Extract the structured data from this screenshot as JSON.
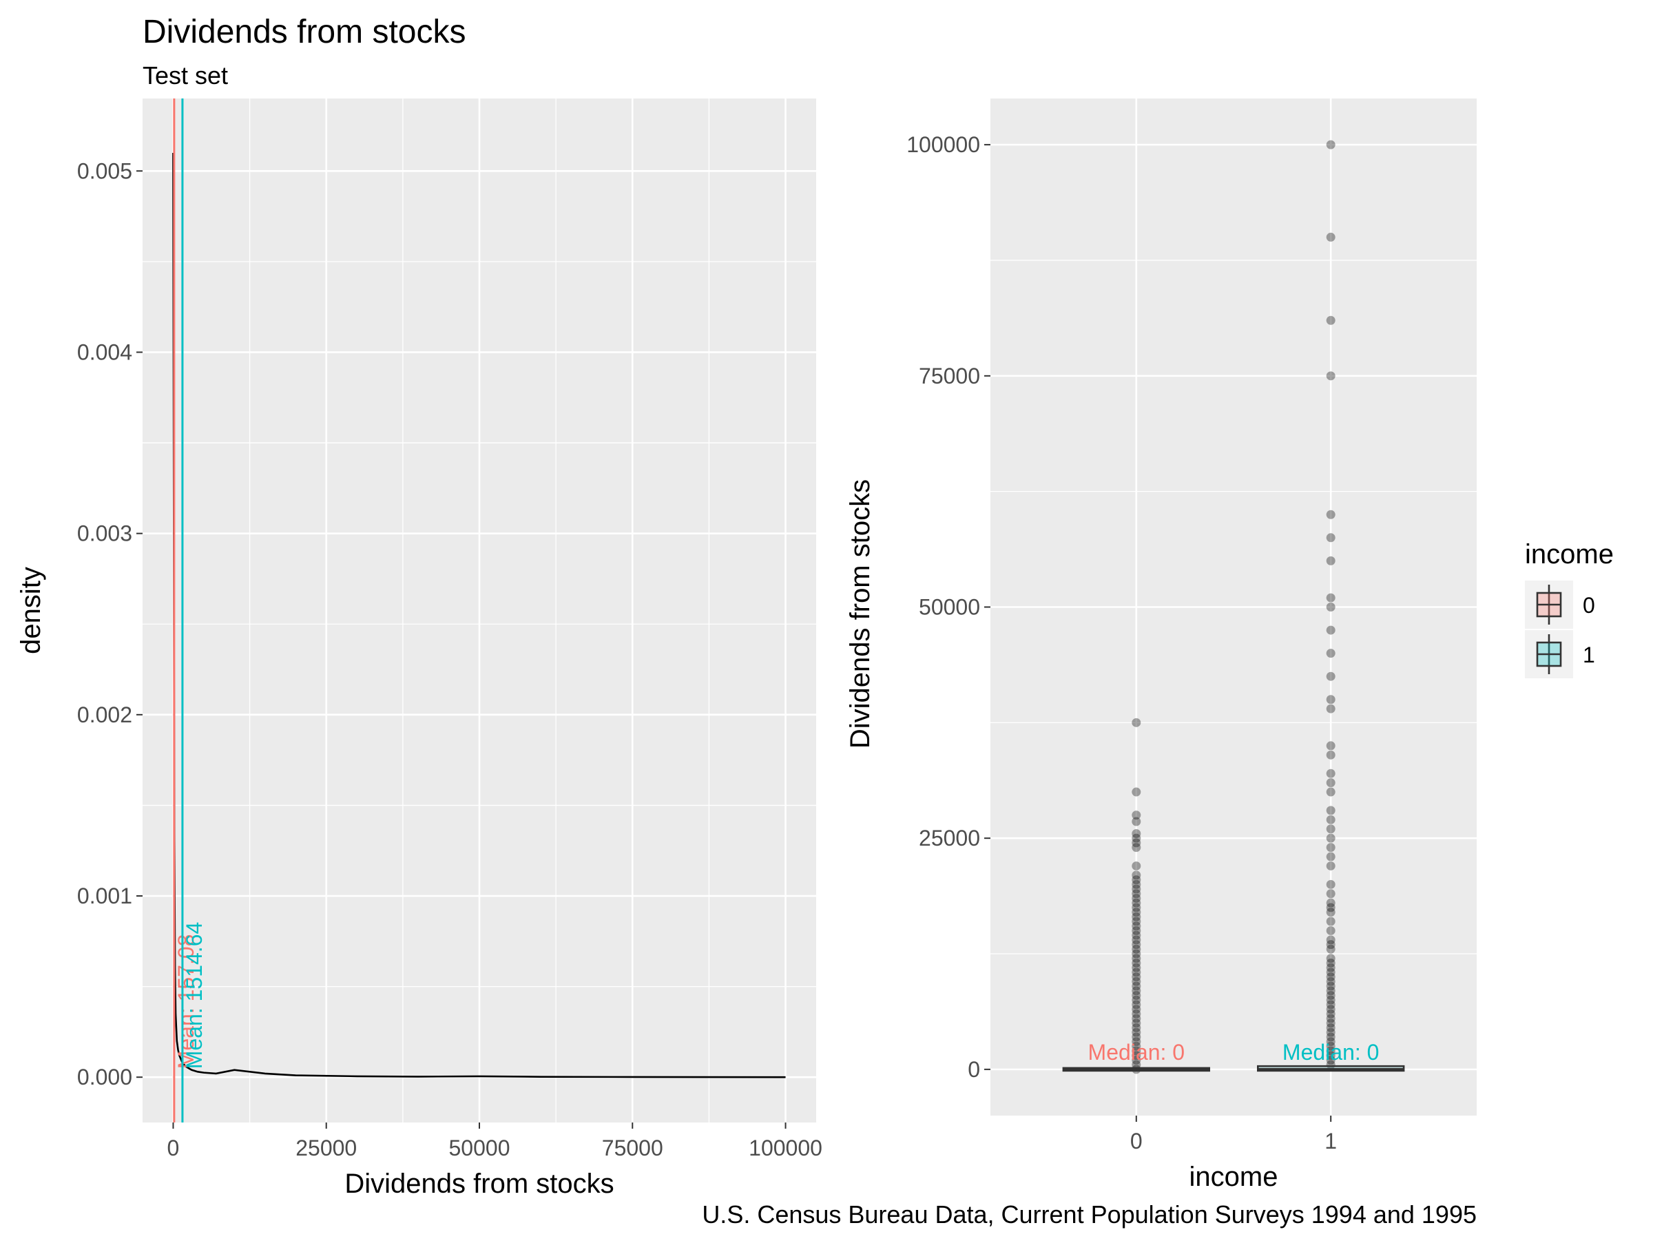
{
  "title": "Dividends from stocks",
  "subtitle": "Test set",
  "caption": "U.S. Census Bureau Data, Current Population Surveys 1994 and 1995",
  "colors": {
    "income_0": "#F8766D",
    "income_1": "#00BFC4",
    "panel_bg": "#EBEBEB",
    "grid": "#FFFFFF",
    "tick_text": "#4D4D4D"
  },
  "chart_data": [
    {
      "type": "area",
      "panel": "left",
      "xlabel": "Dividends from stocks",
      "ylabel": "density",
      "xlim": [
        -5000,
        105000
      ],
      "ylim": [
        -0.00025,
        0.0054
      ],
      "xticks": [
        0,
        25000,
        50000,
        75000,
        100000
      ],
      "xtick_labels": [
        "0",
        "25000",
        "50000",
        "75000",
        "100000"
      ],
      "yticks": [
        0.0,
        0.001,
        0.002,
        0.003,
        0.004,
        0.005
      ],
      "ytick_labels": [
        "0.000",
        "0.001",
        "0.002",
        "0.003",
        "0.004",
        "0.005"
      ],
      "grid": true,
      "density": {
        "x": [
          0,
          100,
          200,
          300,
          400,
          600,
          800,
          1000,
          1500,
          2000,
          3000,
          4000,
          5000,
          7000,
          10000,
          15000,
          20000,
          30000,
          40000,
          50000,
          60000,
          75000,
          100000
        ],
        "y": [
          0.0051,
          0.003,
          0.0013,
          0.0006,
          0.00035,
          0.0002,
          0.00015,
          0.00012,
          8e-05,
          6e-05,
          4e-05,
          3e-05,
          2.5e-05,
          2e-05,
          4e-05,
          2e-05,
          1e-05,
          5e-06,
          3e-06,
          5e-06,
          2e-06,
          1e-06,
          0.0
        ]
      },
      "mean_lines": [
        {
          "income": "0",
          "value": 157.08,
          "label": "Mean: 157.08",
          "color": "#F8766D"
        },
        {
          "income": "1",
          "value": 1514.64,
          "label": "Mean: 1514.64",
          "color": "#00BFC4"
        }
      ]
    },
    {
      "type": "boxplot",
      "panel": "right",
      "xlabel": "income",
      "ylabel": "Dividends from stocks",
      "categories": [
        "0",
        "1"
      ],
      "ylim": [
        -5000,
        105000
      ],
      "yticks": [
        0,
        25000,
        50000,
        75000,
        100000
      ],
      "ytick_labels": [
        "0",
        "25000",
        "50000",
        "75000",
        "100000"
      ],
      "grid": true,
      "legend": {
        "title": "income",
        "position": "right",
        "entries": [
          "0",
          "1"
        ]
      },
      "boxes": [
        {
          "category": "0",
          "median": 0,
          "q1": 0,
          "q3": 0,
          "median_label": "Median: 0",
          "color": "#F8766D",
          "outliers": [
            37500,
            30000,
            27500,
            26800,
            25500,
            25000,
            24500,
            24000,
            22000,
            21000,
            20500,
            20000,
            19500,
            19000,
            18500,
            18000,
            17500,
            17000,
            16500,
            16000,
            15500,
            15000,
            14500,
            14000,
            13500,
            13000,
            12500,
            12000,
            11500,
            11000,
            10500,
            10000,
            9500,
            9000,
            8500,
            8000,
            7500,
            7000,
            6500,
            6000,
            5500,
            5000,
            4500,
            4000,
            3500,
            3000,
            2500,
            2000,
            1500,
            1000,
            500,
            0
          ]
        },
        {
          "category": "1",
          "median": 0,
          "q1": 0,
          "q3": 200,
          "median_label": "Median: 0",
          "color": "#00BFC4",
          "outliers": [
            100000,
            90000,
            81000,
            75000,
            60000,
            57500,
            55000,
            51000,
            50000,
            47500,
            45000,
            42500,
            40000,
            39000,
            35000,
            34000,
            32000,
            31000,
            30000,
            28000,
            27000,
            26000,
            25000,
            24000,
            23000,
            22000,
            20000,
            19000,
            18000,
            17500,
            17000,
            16000,
            15000,
            14000,
            13500,
            13000,
            12000,
            11500,
            11000,
            10500,
            10000,
            9500,
            9000,
            8500,
            8000,
            7500,
            7000,
            6500,
            6000,
            5500,
            5000,
            4500,
            4000,
            3500,
            3000,
            2500,
            2000,
            1500,
            1000,
            500
          ]
        }
      ]
    }
  ]
}
